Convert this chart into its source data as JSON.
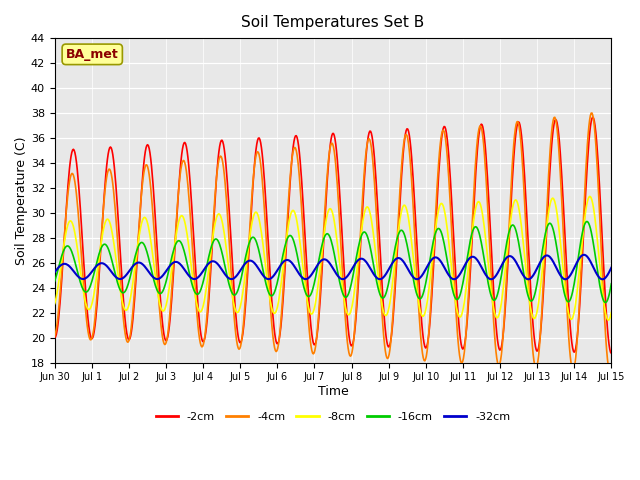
{
  "title": "Soil Temperatures Set B",
  "xlabel": "Time",
  "ylabel": "Soil Temperature (C)",
  "ylim": [
    18,
    44
  ],
  "yticks": [
    18,
    20,
    22,
    24,
    26,
    28,
    30,
    32,
    34,
    36,
    38,
    40,
    42,
    44
  ],
  "plot_bg_color": "#e8e8e8",
  "label_box_text": "BA_met",
  "label_box_color": "#ffff99",
  "label_box_text_color": "#8b0000",
  "colors": {
    "-2cm": "#ff0000",
    "-4cm": "#ff8000",
    "-8cm": "#ffff00",
    "-16cm": "#00cc00",
    "-32cm": "#0000cc"
  },
  "legend_labels": [
    "-2cm",
    "-4cm",
    "-8cm",
    "-16cm",
    "-32cm"
  ],
  "xtick_labels": [
    "Jun 30",
    "Jul 1",
    "Jul 2",
    "Jul 3",
    "Jul 4",
    "Jul 5",
    "Jul 6",
    "Jul 7",
    "Jul 8",
    "Jul 9",
    "Jul 10",
    "Jul 11",
    "Jul 12",
    "Jul 13",
    "Jul 14",
    "Jul 15"
  ],
  "n_days": 15,
  "samples_per_day": 48
}
